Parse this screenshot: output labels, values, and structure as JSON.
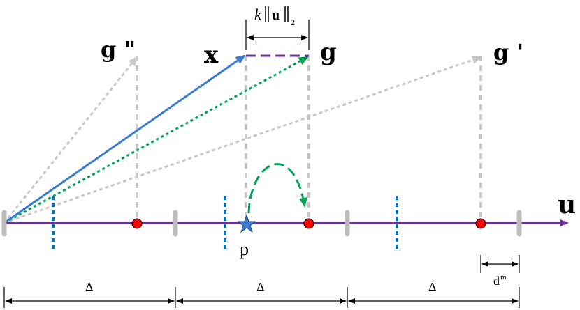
{
  "labels": {
    "x": "x",
    "g": "g",
    "g_prime": "g '",
    "g_double_prime": "g \"",
    "u": "u",
    "p": "p",
    "k": "k",
    "norm_u": "u",
    "norm_sub": "2",
    "d": "d",
    "d_sup": "m",
    "delta_1": "Δ",
    "delta_2": "Δ",
    "delta_3": "Δ"
  },
  "colors": {
    "axis": "#7030a0",
    "x_vector": "#3a7bd5",
    "projection_dotted": "#00a651",
    "green_arc": "#00a651",
    "gray_guides": "#bfbfbf",
    "dashed_purple": "#7030a0",
    "blue_ticks": "#0070c0",
    "red_points": "#ff0000",
    "star": "#3a7bd5",
    "text": "#000000"
  },
  "icons": {
    "star": "star-icon",
    "point": "red-dot-icon"
  }
}
